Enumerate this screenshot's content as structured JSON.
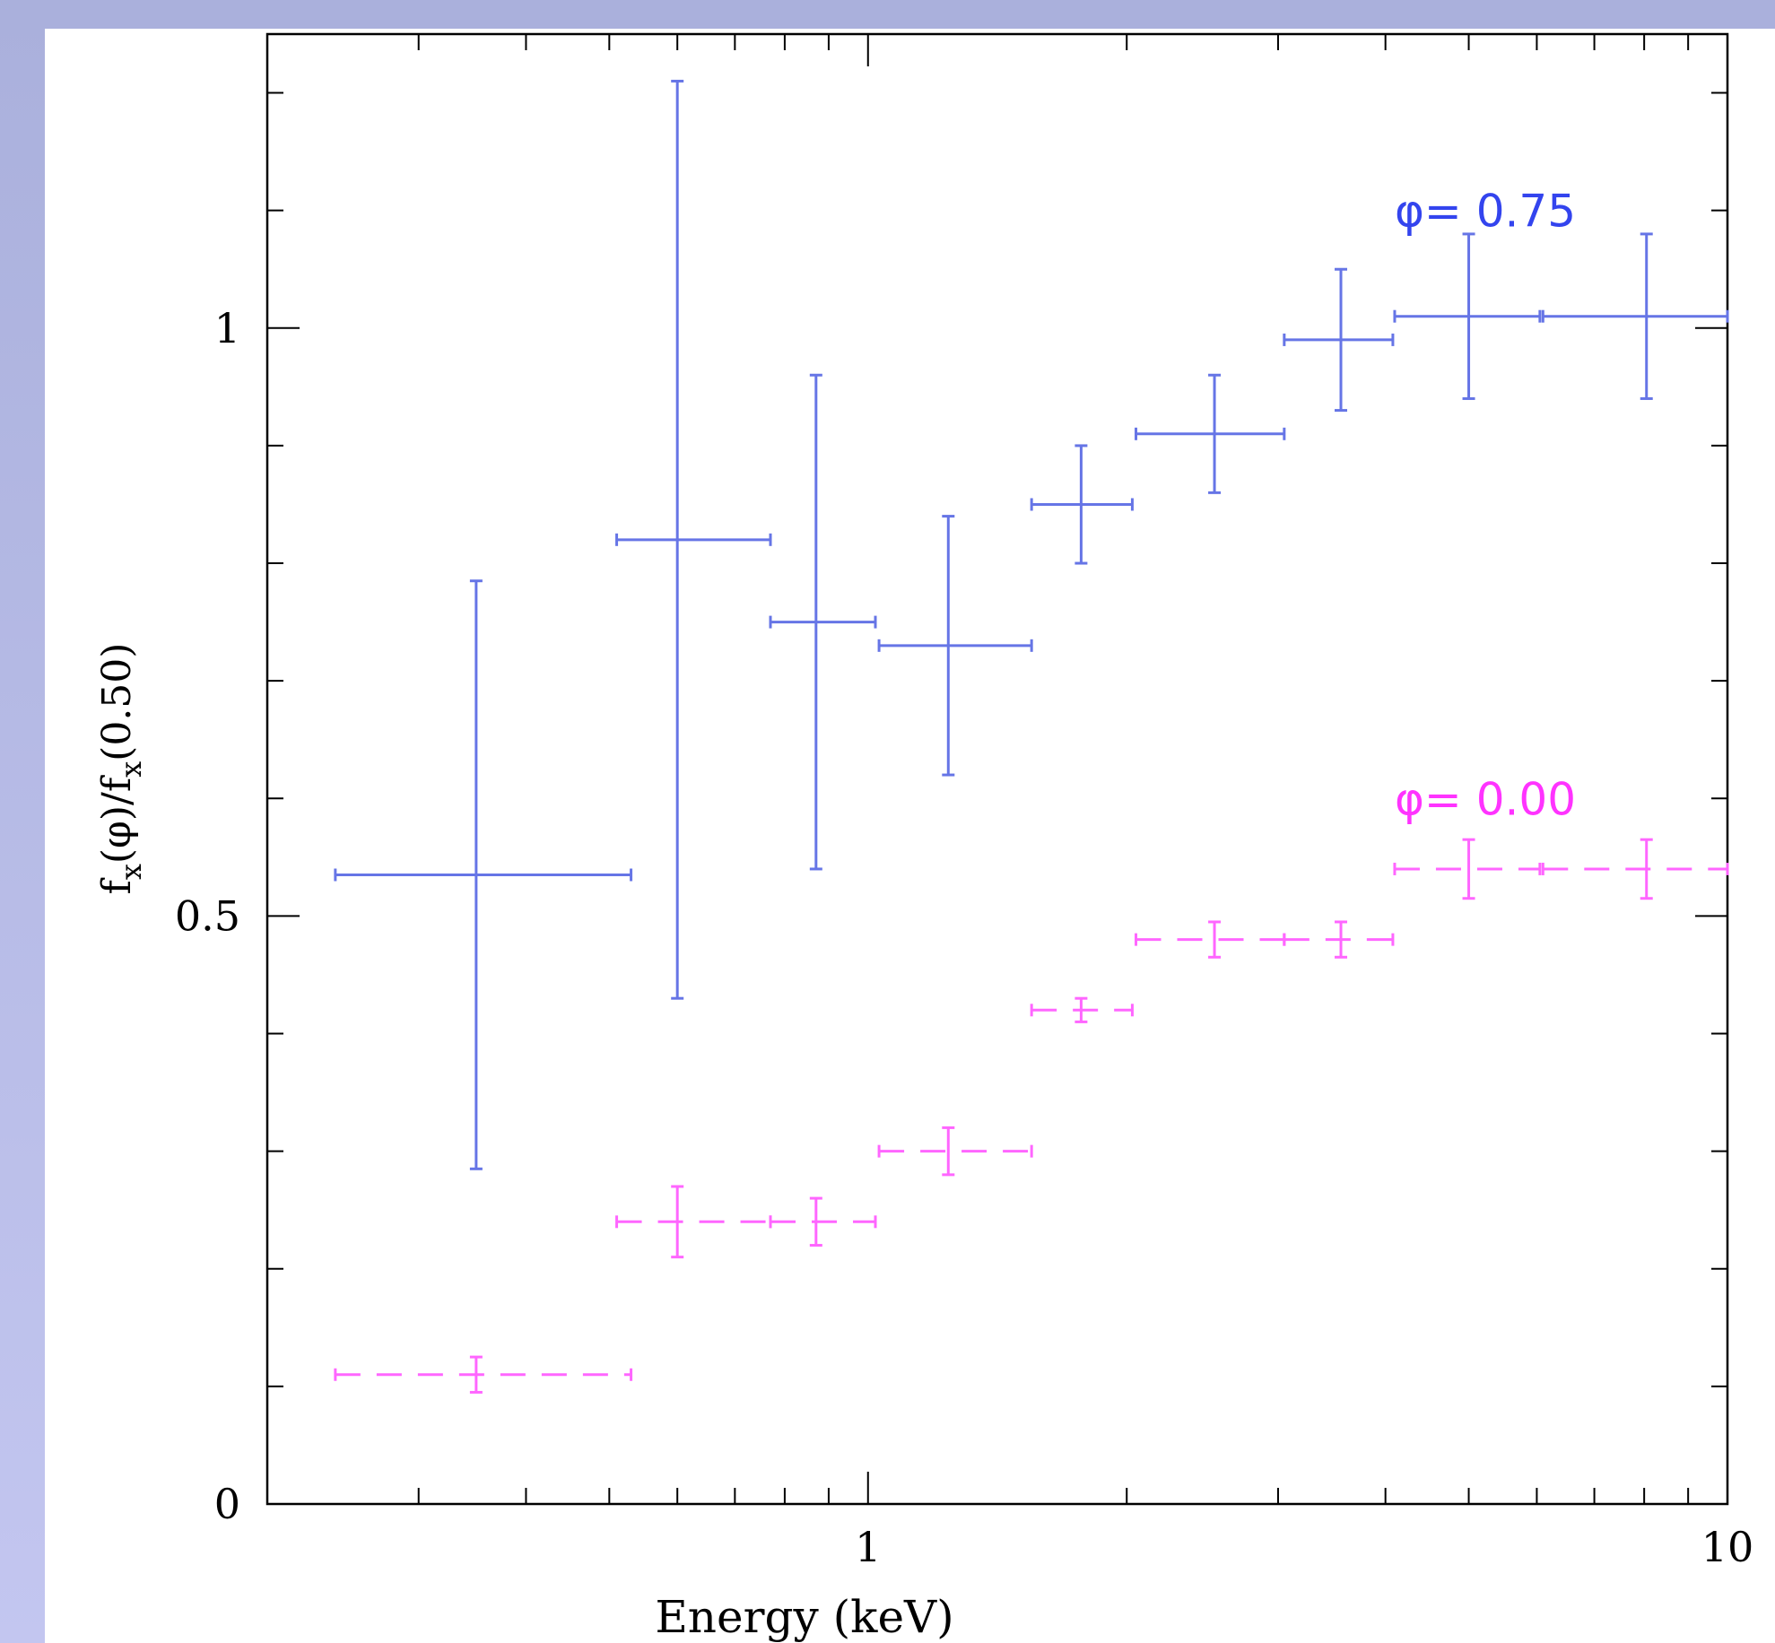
{
  "chart_data": {
    "type": "scatter",
    "title": "",
    "xlabel": "Energy (keV)",
    "ylabel": {
      "prefix": "f",
      "sub1": "x",
      "mid": "(φ)/f",
      "sub2": "x",
      "suffix": "(0.50)"
    },
    "x_scale": "log",
    "xlim": [
      0.2,
      10
    ],
    "ylim": [
      0,
      1.25
    ],
    "x_ticks": [
      {
        "value": 1,
        "label": "1"
      },
      {
        "value": 10,
        "label": "10"
      }
    ],
    "y_ticks": [
      {
        "value": 0,
        "label": "0"
      },
      {
        "value": 0.5,
        "label": "0.5"
      },
      {
        "value": 1,
        "label": "1"
      }
    ],
    "grid": false,
    "series": [
      {
        "name": "φ= 0.75",
        "color": "#6675e6",
        "linestyle": "solid",
        "points": [
          {
            "x": 0.35,
            "xlo": 0.24,
            "xhi": 0.53,
            "y": 0.535,
            "yerr": 0.25
          },
          {
            "x": 0.6,
            "xlo": 0.51,
            "xhi": 0.77,
            "y": 0.82,
            "yerr": 0.39
          },
          {
            "x": 0.87,
            "xlo": 0.77,
            "xhi": 1.02,
            "y": 0.75,
            "yerr": 0.21
          },
          {
            "x": 1.24,
            "xlo": 1.03,
            "xhi": 1.55,
            "y": 0.73,
            "yerr": 0.11
          },
          {
            "x": 1.77,
            "xlo": 1.55,
            "xhi": 2.03,
            "y": 0.85,
            "yerr": 0.05
          },
          {
            "x": 2.53,
            "xlo": 2.05,
            "xhi": 3.05,
            "y": 0.91,
            "yerr": 0.05
          },
          {
            "x": 3.55,
            "xlo": 3.05,
            "xhi": 4.08,
            "y": 0.99,
            "yerr": 0.06
          },
          {
            "x": 5.0,
            "xlo": 4.1,
            "xhi": 6.05,
            "y": 1.01,
            "yerr": 0.07
          },
          {
            "x": 8.05,
            "xlo": 6.1,
            "xhi": 10.0,
            "y": 1.01,
            "yerr": 0.07
          }
        ]
      },
      {
        "name": "φ= 0.00",
        "color": "#ff66ff",
        "linestyle": "dashed",
        "points": [
          {
            "x": 0.35,
            "xlo": 0.24,
            "xhi": 0.53,
            "y": 0.11,
            "yerr": 0.015
          },
          {
            "x": 0.6,
            "xlo": 0.51,
            "xhi": 0.77,
            "y": 0.24,
            "yerr": 0.03
          },
          {
            "x": 0.87,
            "xlo": 0.77,
            "xhi": 1.02,
            "y": 0.24,
            "yerr": 0.02
          },
          {
            "x": 1.24,
            "xlo": 1.03,
            "xhi": 1.55,
            "y": 0.3,
            "yerr": 0.02
          },
          {
            "x": 1.77,
            "xlo": 1.55,
            "xhi": 2.03,
            "y": 0.42,
            "yerr": 0.01
          },
          {
            "x": 2.53,
            "xlo": 2.05,
            "xhi": 3.05,
            "y": 0.48,
            "yerr": 0.015
          },
          {
            "x": 3.55,
            "xlo": 3.05,
            "xhi": 4.08,
            "y": 0.48,
            "yerr": 0.015
          },
          {
            "x": 5.0,
            "xlo": 4.1,
            "xhi": 6.05,
            "y": 0.54,
            "yerr": 0.025
          },
          {
            "x": 8.05,
            "xlo": 6.1,
            "xhi": 10.0,
            "y": 0.54,
            "yerr": 0.025
          }
        ]
      }
    ],
    "annotations": [
      {
        "text": "φ=  0.75",
        "color": "#3344ee",
        "x": 4.1,
        "y": 1.1
      },
      {
        "text": "φ=  0.00",
        "color": "#ff33ff",
        "x": 4.1,
        "y": 0.6
      }
    ]
  }
}
